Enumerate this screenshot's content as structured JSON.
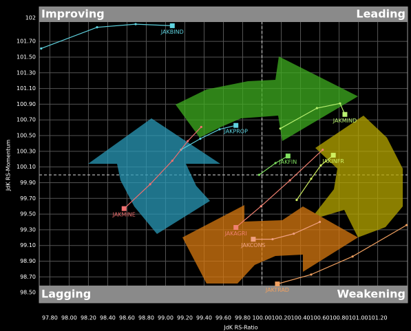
{
  "chart_data": {
    "type": "line",
    "y_label": "JdK RS-Momentum",
    "x_label": "JdK RS-Ratio",
    "quadrants": {
      "top_left": "Improving",
      "top_right": "Leading",
      "bottom_left": "Lagging",
      "bottom_right": "Weakening"
    },
    "xlim": [
      97.69,
      101.51
    ],
    "ylim": [
      98.37,
      102.14
    ],
    "grid": true,
    "xticks": [
      {
        "value": 97.8,
        "label": "97.80"
      },
      {
        "value": 98.0,
        "label": "98.00"
      },
      {
        "value": 98.2,
        "label": "98.20"
      },
      {
        "value": 98.4,
        "label": "98.40"
      },
      {
        "value": 98.6,
        "label": "98.60"
      },
      {
        "value": 98.8,
        "label": "98.80"
      },
      {
        "value": 99.0,
        "label": "99.00"
      },
      {
        "value": 99.2,
        "label": "99.20"
      },
      {
        "value": 99.4,
        "label": "99.40"
      },
      {
        "value": 99.6,
        "label": "99.60"
      },
      {
        "value": 99.8,
        "label": "99.80"
      },
      {
        "value": 100.0,
        "label": "100.00"
      },
      {
        "value": 100.2,
        "label": "100.20"
      },
      {
        "value": 100.4,
        "label": "100.40"
      },
      {
        "value": 100.6,
        "label": "100.60"
      },
      {
        "value": 100.8,
        "label": "100.80"
      },
      {
        "value": 101.0,
        "label": "101.00"
      },
      {
        "value": 101.2,
        "label": "101.20"
      }
    ],
    "yticks": [
      102,
      {
        "value": 101.7,
        "label": "101.70"
      },
      {
        "value": 101.5,
        "label": "101.50"
      },
      {
        "value": 101.3,
        "label": "101.30"
      },
      {
        "value": 101.1,
        "label": "101.10"
      },
      {
        "value": 100.9,
        "label": "100.90"
      },
      {
        "value": 100.7,
        "label": "100.70"
      },
      {
        "value": 100.5,
        "label": "100.50"
      },
      {
        "value": 100.3,
        "label": "100.30"
      },
      {
        "value": 100.1,
        "label": "100.10"
      },
      {
        "value": 99.9,
        "label": "99.90"
      },
      {
        "value": 99.7,
        "label": "99.70"
      },
      {
        "value": 99.5,
        "label": "99.50"
      },
      {
        "value": 99.3,
        "label": "99.30"
      },
      {
        "value": 99.1,
        "label": "99.10"
      },
      {
        "value": 98.9,
        "label": "98.90"
      },
      {
        "value": 98.7,
        "label": "98.70"
      },
      {
        "value": 98.5,
        "label": "98.50"
      }
    ],
    "series": [
      {
        "name": "JAKBIND",
        "color": "#5fd3e0",
        "x": [
          97.71,
          98.29,
          98.69,
          99.07
        ],
        "y": [
          101.61,
          101.88,
          101.92,
          101.9
        ]
      },
      {
        "name": "JAKPROP",
        "color": "#5fd3e0",
        "x": [
          99.16,
          99.36,
          99.56,
          99.73
        ],
        "y": [
          100.32,
          100.46,
          100.58,
          100.63
        ]
      },
      {
        "name": "JAKMINE",
        "color": "#f07070",
        "x": [
          99.37,
          99.23,
          99.07,
          98.84,
          98.57
        ],
        "y": [
          100.61,
          100.43,
          100.18,
          99.88,
          99.57
        ]
      },
      {
        "name": "JAKMIND",
        "color": "#b8f070",
        "x": [
          100.19,
          100.57,
          100.81,
          100.86
        ],
        "y": [
          100.59,
          100.85,
          100.91,
          100.77
        ]
      },
      {
        "name": "JAKFIN",
        "color": "#80e060",
        "x": [
          99.97,
          100.14,
          100.27
        ],
        "y": [
          100.0,
          100.15,
          100.24
        ]
      },
      {
        "name": "JAKINFR",
        "color": "#d0f060",
        "x": [
          100.36,
          100.51,
          100.61,
          100.74
        ],
        "y": [
          99.68,
          99.95,
          100.12,
          100.25
        ]
      },
      {
        "name": "JAKAGRI",
        "color": "#f08070",
        "x": [
          100.63,
          100.29,
          99.99,
          99.73
        ],
        "y": [
          100.32,
          99.93,
          99.6,
          99.33
        ]
      },
      {
        "name": "JAKCONS",
        "color": "#f0a080",
        "x": [
          100.6,
          100.33,
          100.11,
          99.91
        ],
        "y": [
          99.4,
          99.25,
          99.18,
          99.18
        ]
      },
      {
        "name": "JAKTRAD",
        "color": "#f0a060",
        "x": [
          101.5,
          100.94,
          100.51,
          100.16
        ],
        "y": [
          99.36,
          98.96,
          98.73,
          98.61
        ]
      }
    ]
  }
}
